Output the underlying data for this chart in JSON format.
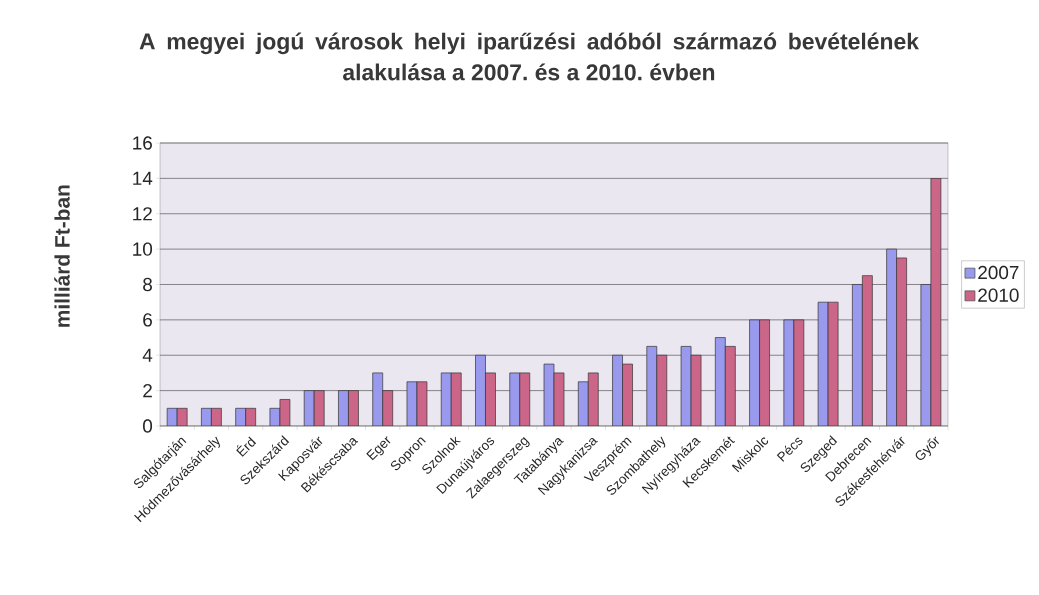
{
  "chart_data": {
    "type": "bar",
    "title": "A megyei jogú városok helyi iparűzési adóból származó bevételének alakulása a 2007. és a 2010. évben",
    "ylabel": "milliárd Ft-ban",
    "categories": [
      "Salgótarján",
      "Hódmezővásárhely",
      "Érd",
      "Szekszárd",
      "Kaposvár",
      "Békéscsaba",
      "Eger",
      "Sopron",
      "Szolnok",
      "Dunaújváros",
      "Zalaegerszeg",
      "Tatabánya",
      "Nagykanizsa",
      "Veszprém",
      "Szombathely",
      "Nyíregyháza",
      "Kecskemét",
      "Miskolc",
      "Pécs",
      "Szeged",
      "Debrecen",
      "Székesfehérvár",
      "Győr"
    ],
    "series": [
      {
        "name": "2007",
        "color": "#9999ee",
        "values": [
          1,
          1,
          1,
          1,
          2,
          2,
          3,
          2.5,
          3,
          4,
          3,
          3.5,
          2.5,
          4,
          4.5,
          4.5,
          5,
          6,
          6,
          7,
          8,
          10,
          8
        ]
      },
      {
        "name": "2010",
        "color": "#cc6688",
        "values": [
          1,
          1,
          1,
          1.5,
          2,
          2,
          2,
          2.5,
          3,
          3,
          3,
          3,
          3,
          3.5,
          4,
          4,
          4.5,
          6,
          6,
          7,
          8.5,
          9.5,
          14
        ]
      }
    ],
    "ylim": [
      0,
      16
    ],
    "yticks": [
      0,
      2,
      4,
      6,
      8,
      10,
      12,
      14,
      16
    ],
    "grid": "y",
    "legend": "right"
  }
}
